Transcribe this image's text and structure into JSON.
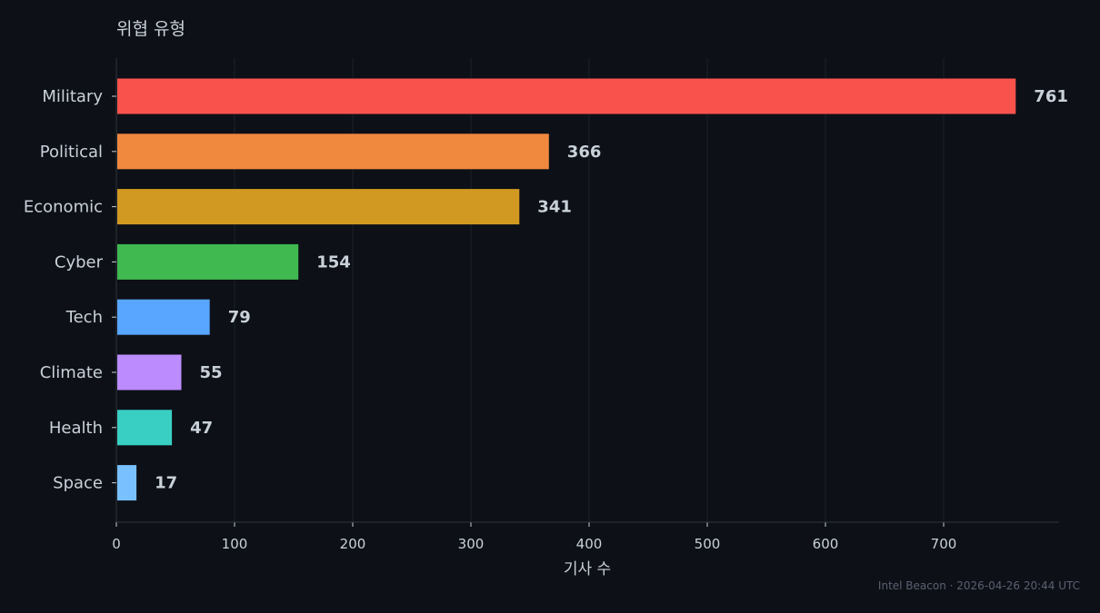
{
  "chart_data": {
    "type": "bar",
    "orientation": "horizontal",
    "title": "위협 유형",
    "xlabel": "기사 수",
    "ylabel": "",
    "categories": [
      "Military",
      "Political",
      "Economic",
      "Cyber",
      "Tech",
      "Climate",
      "Health",
      "Space"
    ],
    "values": [
      761,
      366,
      341,
      154,
      79,
      55,
      47,
      17
    ],
    "colors": [
      "#f9524d",
      "#f0883e",
      "#d29922",
      "#3fb950",
      "#58a6ff",
      "#bc8cff",
      "#39d0c3",
      "#79c0ff"
    ],
    "xlim": [
      0,
      800
    ],
    "xticks": [
      0,
      100,
      200,
      300,
      400,
      500,
      600,
      700
    ],
    "grid": "vertical",
    "legend": "none"
  },
  "footer": "Intel Beacon · 2026-04-26 20:44 UTC",
  "theme": {
    "background": "#0d1017",
    "text": "#c9d1d9",
    "grid": "#1b2029",
    "axis": "#30363d"
  }
}
